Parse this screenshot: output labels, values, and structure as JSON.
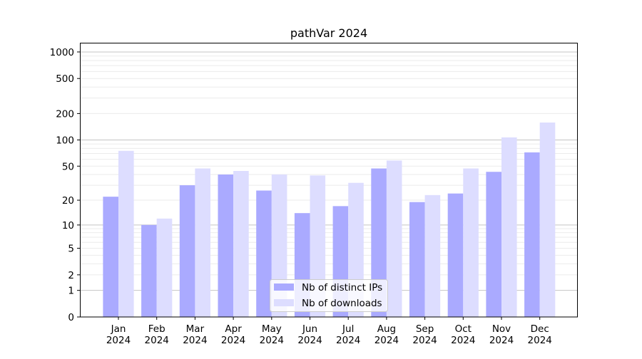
{
  "chart_data": {
    "type": "bar",
    "title": "pathVar 2024",
    "xlabel": "",
    "ylabel": "",
    "y_scale": "log(1+y)",
    "ylim": [
      0,
      1200
    ],
    "y_ticks": [
      0,
      1,
      2,
      5,
      10,
      20,
      50,
      100,
      200,
      500,
      1000
    ],
    "grid": "horizontal major and minor",
    "legend_position": "lower center",
    "categories": [
      [
        "Jan",
        "2024"
      ],
      [
        "Feb",
        "2024"
      ],
      [
        "Mar",
        "2024"
      ],
      [
        "Apr",
        "2024"
      ],
      [
        "May",
        "2024"
      ],
      [
        "Jun",
        "2024"
      ],
      [
        "Jul",
        "2024"
      ],
      [
        "Aug",
        "2024"
      ],
      [
        "Sep",
        "2024"
      ],
      [
        "Oct",
        "2024"
      ],
      [
        "Nov",
        "2024"
      ],
      [
        "Dec",
        "2024"
      ]
    ],
    "series": [
      {
        "name": "Nb of distinct IPs",
        "color": "#aaaaff",
        "values": [
          22,
          10,
          30,
          40,
          26,
          14,
          17,
          47,
          19,
          24,
          43,
          72
        ]
      },
      {
        "name": "Nb of downloads",
        "color": "#ddddff",
        "values": [
          75,
          12,
          47,
          44,
          40,
          39,
          32,
          58,
          23,
          47,
          107,
          158
        ]
      }
    ]
  }
}
